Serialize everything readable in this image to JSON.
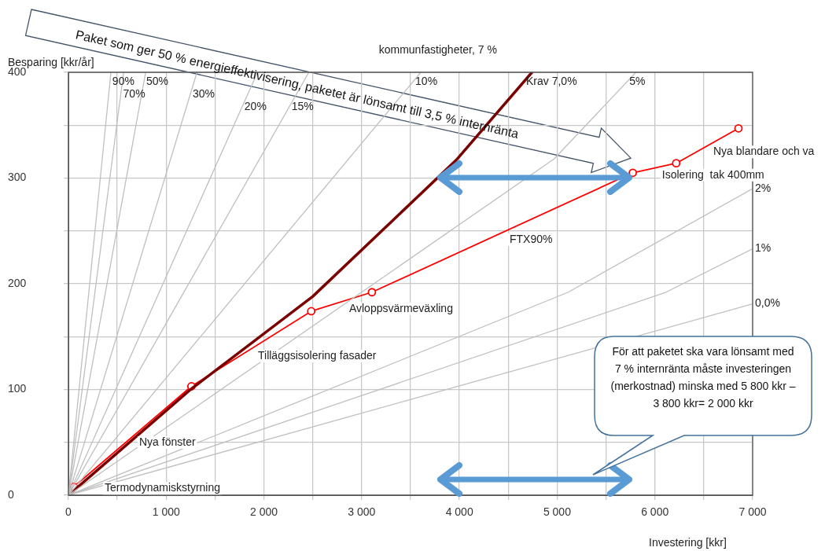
{
  "chart_data": {
    "type": "line",
    "title": "kommunfastigheter, 7 %",
    "xlabel": "Investering [kkr]",
    "ylabel": "Besparing [kkr/år]",
    "xlim": [
      0,
      7000
    ],
    "ylim": [
      0,
      400
    ],
    "xticks": [
      0,
      {
        "value": 500,
        "label": null
      },
      {
        "value": 1000,
        "label": "1 000"
      },
      {
        "value": 1500,
        "label": null
      },
      {
        "value": 2000,
        "label": "2 000"
      },
      {
        "value": 2500,
        "label": null
      },
      {
        "value": 3000,
        "label": "3 000"
      },
      {
        "value": 3500,
        "label": null
      },
      {
        "value": 4000,
        "label": "4 000"
      },
      {
        "value": 4500,
        "label": null
      },
      {
        "value": 5000,
        "label": "5 000"
      },
      {
        "value": 5500,
        "label": null
      },
      {
        "value": 6000,
        "label": "6 000"
      },
      {
        "value": 6500,
        "label": null
      },
      {
        "value": 7000,
        "label": "7 000"
      }
    ],
    "yticks": [
      0,
      {
        "value": 50,
        "label": null
      },
      100,
      {
        "value": 150,
        "label": null
      },
      200,
      {
        "value": 250,
        "label": null
      },
      300,
      {
        "value": 350,
        "label": null
      },
      400
    ],
    "grid": true,
    "legend": false,
    "marker": "circle",
    "line_style": "solid",
    "series": [
      {
        "name": "90%",
        "color": "#bfbfbf",
        "marker": "none",
        "x": [
          0,
          435
        ],
        "values": [
          0,
          400
        ]
      },
      {
        "name": "70%",
        "color": "#bfbfbf",
        "marker": "none",
        "x": [
          0,
          565
        ],
        "values": [
          0,
          400
        ]
      },
      {
        "name": "50%",
        "color": "#bfbfbf",
        "marker": "none",
        "x": [
          0,
          790
        ],
        "values": [
          0,
          400
        ]
      },
      {
        "name": "30%",
        "color": "#bfbfbf",
        "marker": "none",
        "x": [
          0,
          1315
        ],
        "values": [
          0,
          400
        ]
      },
      {
        "name": "20%",
        "color": "#bfbfbf",
        "marker": "none",
        "x": [
          0,
          1935
        ],
        "values": [
          0,
          400
        ]
      },
      {
        "name": "15%",
        "color": "#bfbfbf",
        "marker": "none",
        "x": [
          0,
          2460
        ],
        "values": [
          0,
          400
        ]
      },
      {
        "name": "10%",
        "color": "#bfbfbf",
        "marker": "none",
        "x": [
          0,
          3605
        ],
        "values": [
          0,
          400
        ]
      },
      {
        "name": "5%",
        "color": "#bfbfbf",
        "marker": "none",
        "x": [
          0,
          4968,
          5806
        ],
        "values": [
          0,
          318,
          400
        ]
      },
      {
        "name": "2%",
        "color": "#bfbfbf",
        "marker": "none",
        "x": [
          0,
          5113,
          7000
        ],
        "values": [
          0,
          192,
          290
        ]
      },
      {
        "name": "1%",
        "color": "#bfbfbf",
        "marker": "none",
        "x": [
          0,
          6113,
          7000
        ],
        "values": [
          0,
          192,
          233
        ]
      },
      {
        "name": "0,0%",
        "color": "#bfbfbf",
        "marker": "none",
        "x": [
          0,
          7000
        ],
        "values": [
          0,
          181
        ]
      },
      {
        "name": "Krav 7,0%",
        "color": "#7b0000",
        "marker": "none",
        "x": [
          0,
          1250,
          2500,
          3968,
          4742
        ],
        "values": [
          0,
          100,
          188,
          317,
          400
        ]
      },
      {
        "color": "#ff0000",
        "x": [
          0,
          56,
          1258,
          2484,
          3105,
          5774,
          6218,
          6855
        ],
        "values": [
          0,
          8,
          103,
          174,
          192,
          305,
          314,
          347
        ]
      }
    ],
    "annotations": [
      {
        "text": "Termodynamiskstyrning",
        "x": 56,
        "y": 8
      },
      "Nya fönster",
      "Tilläggsisolering fasader",
      {
        "text": "Avloppsvärmeväxling",
        "x": 3105,
        "y": 192
      },
      "FTX90%",
      {
        "text": "Isolering  tak 400mm",
        "x": 6218,
        "y": 314
      },
      {
        "text": "Nya blandare och va",
        "x": 6855,
        "y": 347
      },
      "Paket som ger 50 % energieffektivisering, paketet är lönsamt till 3,5 % internränta",
      "För att paketet ska vara lönsamt med 7 % internränta måste investeringen (merkostnad) minska med 5 800 kkr – 3 800 kkr= 2 000 kkr"
    ]
  }
}
